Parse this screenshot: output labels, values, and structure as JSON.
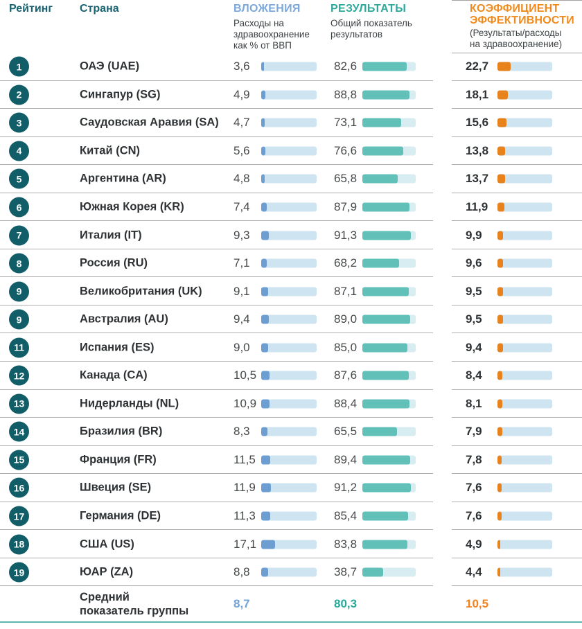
{
  "header": {
    "rank_label": "Рейтинг",
    "country_label": "Страна",
    "investment_title": "ВЛОЖЕНИЯ",
    "investment_subtitle": "Расходы на\nздравоохранение\nкак % от ВВП",
    "results_title": "РЕЗУЛЬТАТЫ",
    "results_subtitle": "Общий показатель\nрезультатов",
    "efficiency_title": "КОЭФФИЦИЕНТ\nЭФФЕКТИВНОСТИ",
    "efficiency_subtitle": "(Результаты/расходы\nна здравоохранение)"
  },
  "colors": {
    "header_dark_teal": "#1a6372",
    "investment_header_blue": "#7ca8da",
    "results_header_teal": "#2fa89b",
    "efficiency_header_orange": "#f18a1c",
    "rank_circle": "#115e68",
    "investment_bar_fill": "#6d9ed2",
    "investment_bar_track": "#cfe4f1",
    "results_bar_fill": "#61c0b8",
    "results_bar_track": "#d8edf2",
    "efficiency_bar_fill": "#e8821c",
    "efficiency_bar_track": "#cfe4f1",
    "separator_gray": "#aeaeae",
    "bottom_line_teal": "#59b7ae",
    "avg_investment_text": "#6fa3d8",
    "avg_results_text": "#2aa89a",
    "avg_efficiency_text": "#f0821f"
  },
  "chart_data": {
    "type": "table",
    "title": "",
    "columns": [
      "Рейтинг",
      "Страна",
      "ВЛОЖЕНИЯ (Расходы на здравоохранение как % от ВВП)",
      "РЕЗУЛЬТАТЫ (Общий показатель результатов)",
      "КОЭФФИЦИЕНТ ЭФФЕКТИВНОСТИ (Результаты/расходы на здравоохранение)"
    ],
    "bar_scales": {
      "investment_max": 70,
      "results_max": 100,
      "efficiency_max": 95
    },
    "rows": [
      {
        "rank": "1",
        "country": "ОАЭ (UAE)",
        "inv": "3,6",
        "res": "82,6",
        "eff": "22,7"
      },
      {
        "rank": "2",
        "country": "Сингапур (SG)",
        "inv": "4,9",
        "res": "88,8",
        "eff": "18,1"
      },
      {
        "rank": "3",
        "country": "Саудовская Аравия (SA)",
        "inv": "4,7",
        "res": "73,1",
        "eff": "15,6"
      },
      {
        "rank": "4",
        "country": "Китай (CN)",
        "inv": "5,6",
        "res": "76,6",
        "eff": "13,8"
      },
      {
        "rank": "5",
        "country": "Аргентина (AR)",
        "inv": "4,8",
        "res": "65,8",
        "eff": "13,7"
      },
      {
        "rank": "6",
        "country": "Южная Корея (KR)",
        "inv": "7,4",
        "res": "87,9",
        "eff": "11,9"
      },
      {
        "rank": "7",
        "country": "Италия (IT)",
        "inv": "9,3",
        "res": "91,3",
        "eff": "9,9"
      },
      {
        "rank": "8",
        "country": "Россия (RU)",
        "inv": "7,1",
        "res": "68,2",
        "eff": "9,6"
      },
      {
        "rank": "9",
        "country": "Великобритания (UK)",
        "inv": "9,1",
        "res": "87,1",
        "eff": "9,5"
      },
      {
        "rank": "9",
        "country": "Австралия (AU)",
        "inv": "9,4",
        "res": "89,0",
        "eff": "9,5"
      },
      {
        "rank": "11",
        "country": "Испания (ES)",
        "inv": "9,0",
        "res": "85,0",
        "eff": "9,4"
      },
      {
        "rank": "12",
        "country": "Канада (CA)",
        "inv": "10,5",
        "res": "87,6",
        "eff": "8,4"
      },
      {
        "rank": "13",
        "country": "Нидерланды (NL)",
        "inv": "10,9",
        "res": "88,4",
        "eff": "8,1"
      },
      {
        "rank": "14",
        "country": "Бразилия (BR)",
        "inv": "8,3",
        "res": "65,5",
        "eff": "7,9"
      },
      {
        "rank": "15",
        "country": "Франция (FR)",
        "inv": "11,5",
        "res": "89,4",
        "eff": "7,8"
      },
      {
        "rank": "16",
        "country": "Швеция (SE)",
        "inv": "11,9",
        "res": "91,2",
        "eff": "7,6"
      },
      {
        "rank": "17",
        "country": "Германия (DE)",
        "inv": "11,3",
        "res": "85,4",
        "eff": "7,6"
      },
      {
        "rank": "18",
        "country": "США (US)",
        "inv": "17,1",
        "res": "83,8",
        "eff": "4,9"
      },
      {
        "rank": "19",
        "country": "ЮАР (ZA)",
        "inv": "8,8",
        "res": "38,7",
        "eff": "4,4"
      }
    ],
    "average": {
      "label": "Средний\nпоказатель группы",
      "inv": "8,7",
      "res": "80,3",
      "eff": "10,5"
    }
  }
}
